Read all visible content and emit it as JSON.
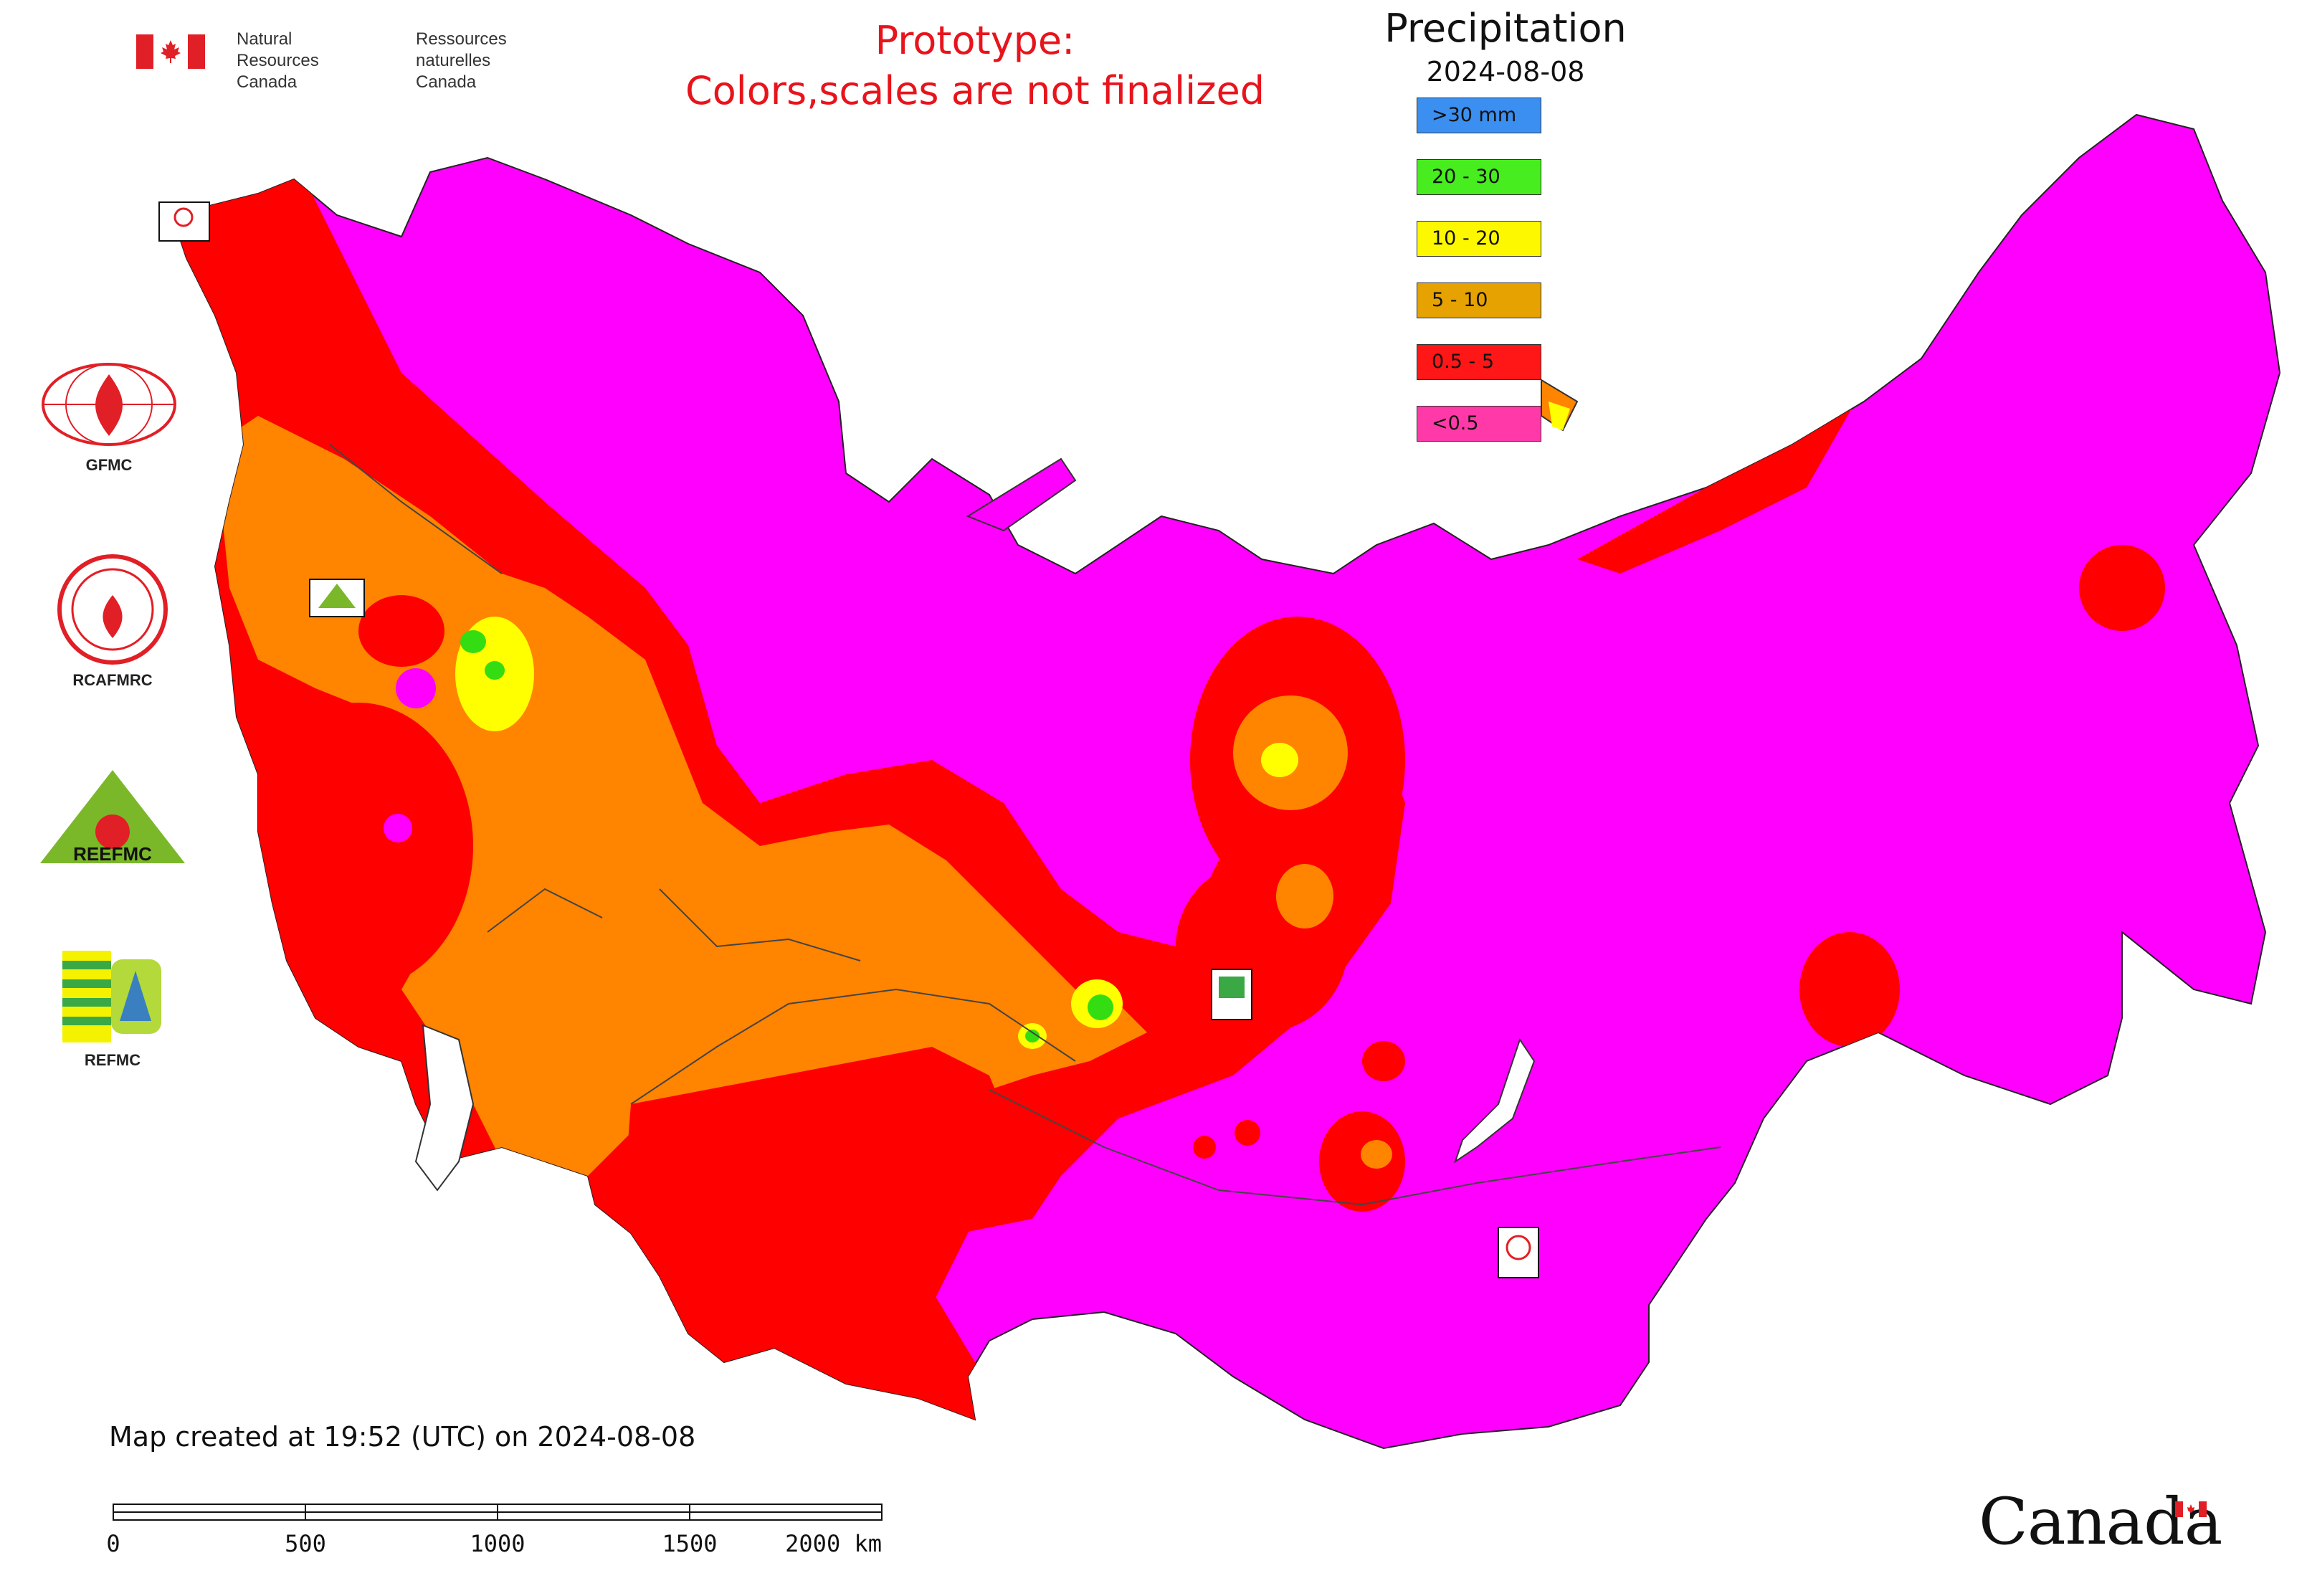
{
  "header": {
    "dept_en": [
      "Natural Resources",
      "Canada"
    ],
    "dept_fr": [
      "Ressources naturelles",
      "Canada"
    ],
    "prototype_notice": [
      "Prototype:",
      "Colors,scales are not finalized"
    ]
  },
  "legend": {
    "title": "Precipitation",
    "date": "2024-08-08",
    "items": [
      {
        "label": ">30 mm",
        "color": "#3a8ff0"
      },
      {
        "label": "20 - 30",
        "color": "#47ed1e"
      },
      {
        "label": "10 - 20",
        "color": "#fdf700"
      },
      {
        "label": "5 - 10",
        "color": "#e6a200"
      },
      {
        "label": "0.5 - 5",
        "color": "#ff1616"
      },
      {
        "label": "<0.5",
        "color": "#ff3aa8"
      }
    ]
  },
  "map_colors": {
    "lt_0_5": "#ff00ff",
    "r_0_5_5": "#ff0000",
    "r_5_10": "#ff8400",
    "r_10_20": "#ffff00",
    "r_20_30": "#33dd11"
  },
  "logos": {
    "gfmc": "GFMC",
    "rcafmrc": "RCAFMRC",
    "reefmc": "REEFMC",
    "refmc": "REFMC",
    "rcafmrc_inner": "RCAFMRC"
  },
  "footer": {
    "created": "Map created at 19:52 (UTC) on 2024-08-08",
    "scale_ticks": [
      "0",
      "500",
      "1000",
      "1500",
      "2000 km"
    ],
    "wordmark": "Canada"
  }
}
